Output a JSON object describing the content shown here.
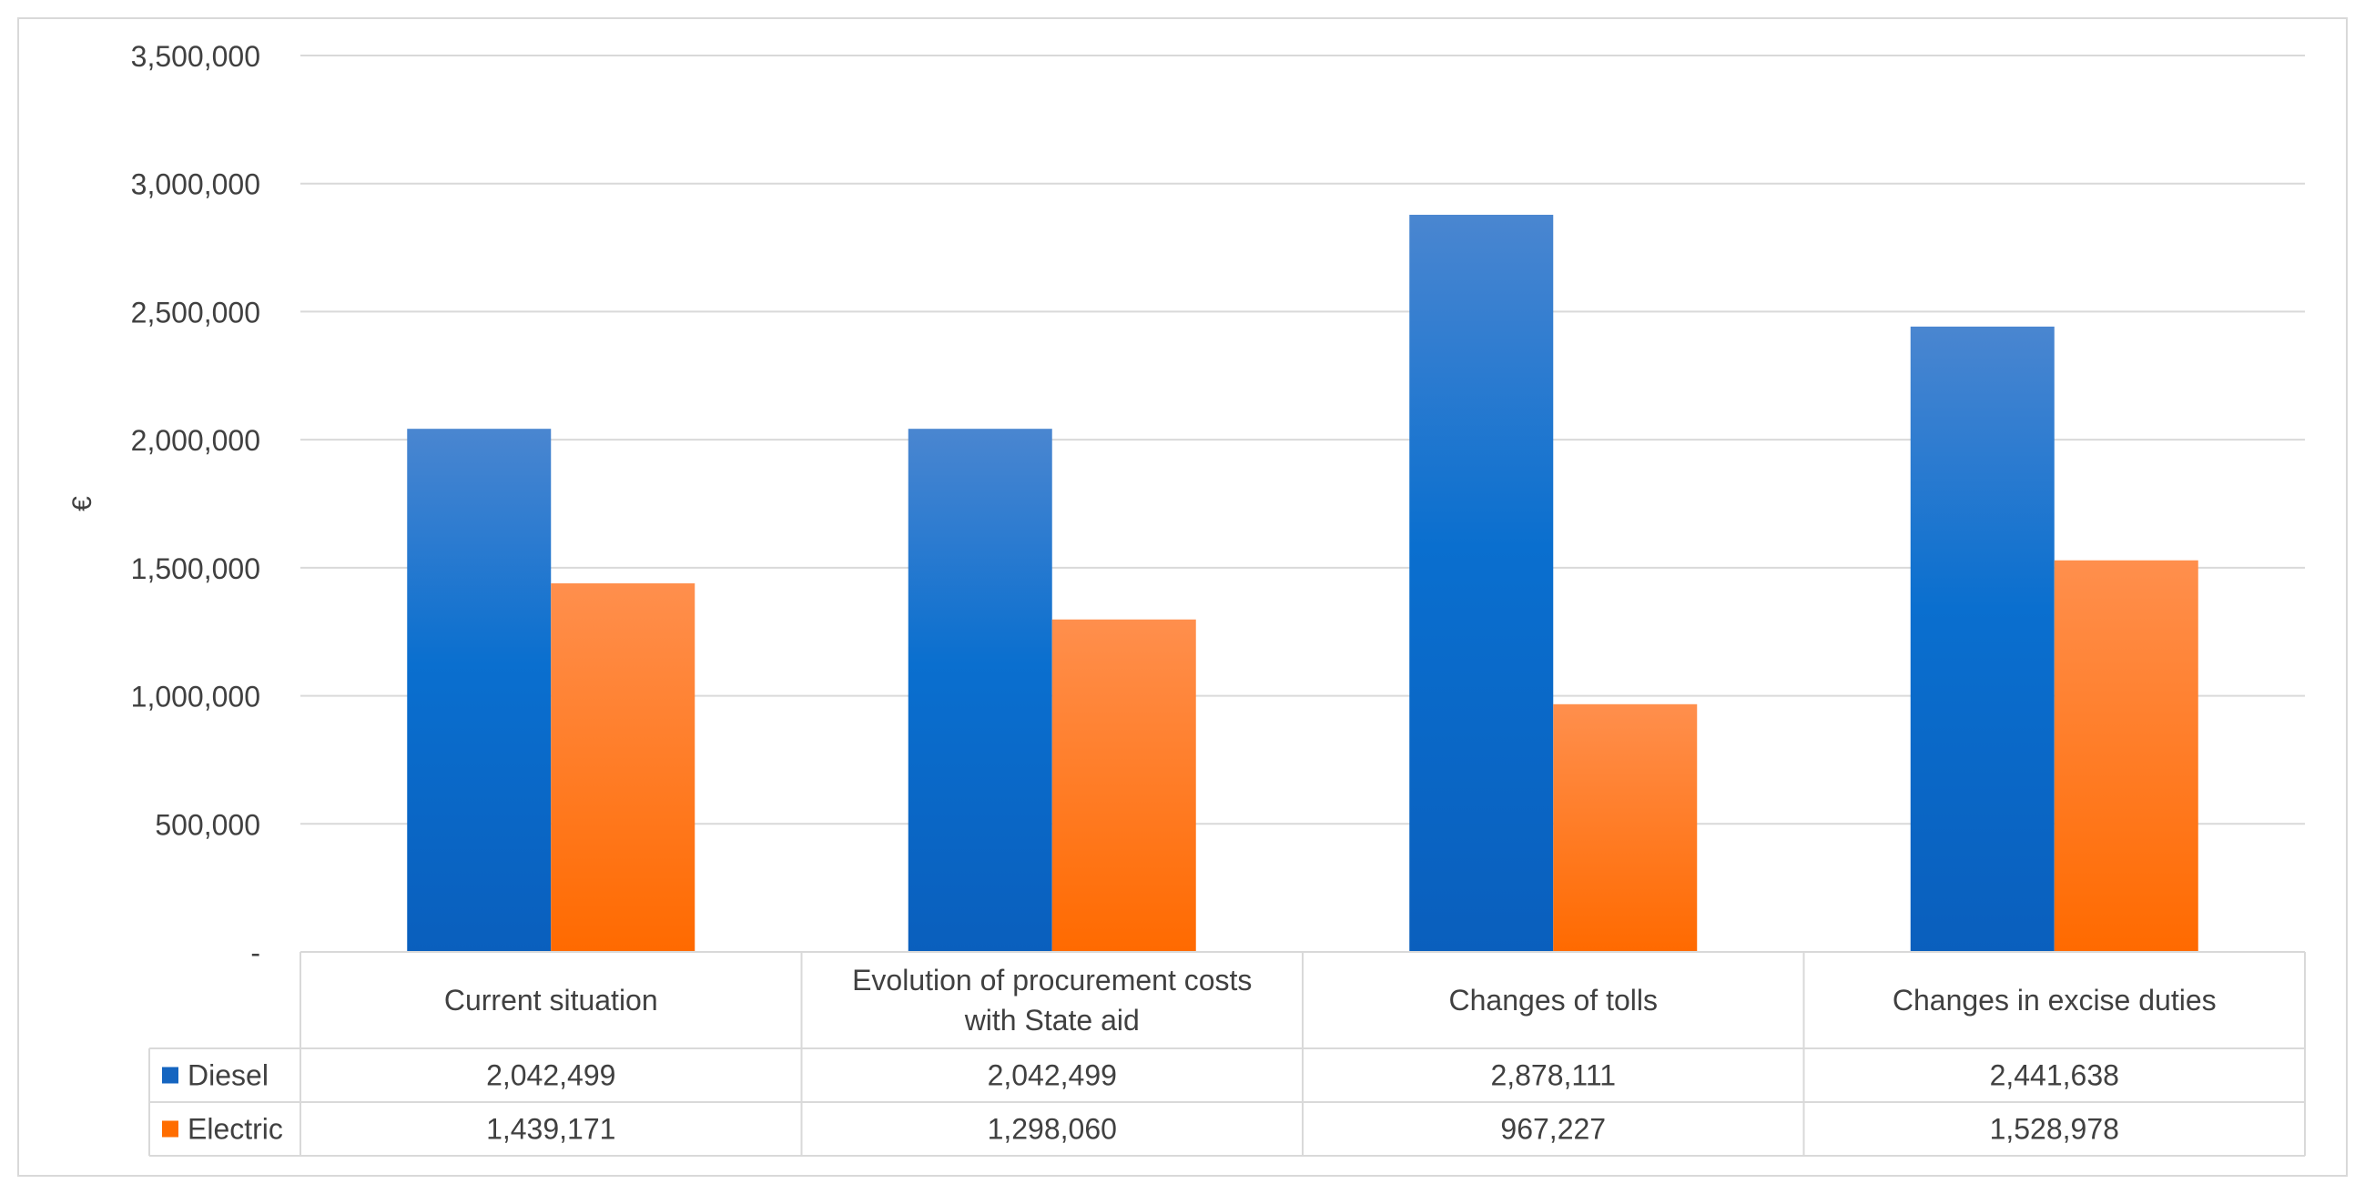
{
  "chart_data": {
    "type": "bar",
    "title": "",
    "xlabel": "",
    "ylabel": "€",
    "ylim": [
      0,
      3500000
    ],
    "yticks": [
      0,
      500000,
      1000000,
      1500000,
      2000000,
      2500000,
      3000000,
      3500000
    ],
    "ytick_labels": [
      "-",
      "500,000",
      "1,000,000",
      "1,500,000",
      "2,000,000",
      "2,500,000",
      "3,000,000",
      "3,500,000"
    ],
    "grid": true,
    "categories": [
      [
        "Current situation"
      ],
      [
        "Evolution of procurement costs",
        "with State aid"
      ],
      [
        "Changes of tolls"
      ],
      [
        "Changes in excise duties"
      ]
    ],
    "series": [
      {
        "name": "Diesel",
        "color": "#1565c0",
        "values": [
          2042499,
          2042499,
          2878111,
          2441638
        ],
        "value_labels": [
          "2,042,499",
          "2,042,499",
          "2,878,111",
          "2,441,638"
        ]
      },
      {
        "name": "Electric",
        "color": "#ff6d00",
        "values": [
          1439171,
          1298060,
          967227,
          1528978
        ],
        "value_labels": [
          "1,439,171",
          "1,298,060",
          "967,227",
          "1,528,978"
        ]
      }
    ],
    "legend": "data-table"
  }
}
